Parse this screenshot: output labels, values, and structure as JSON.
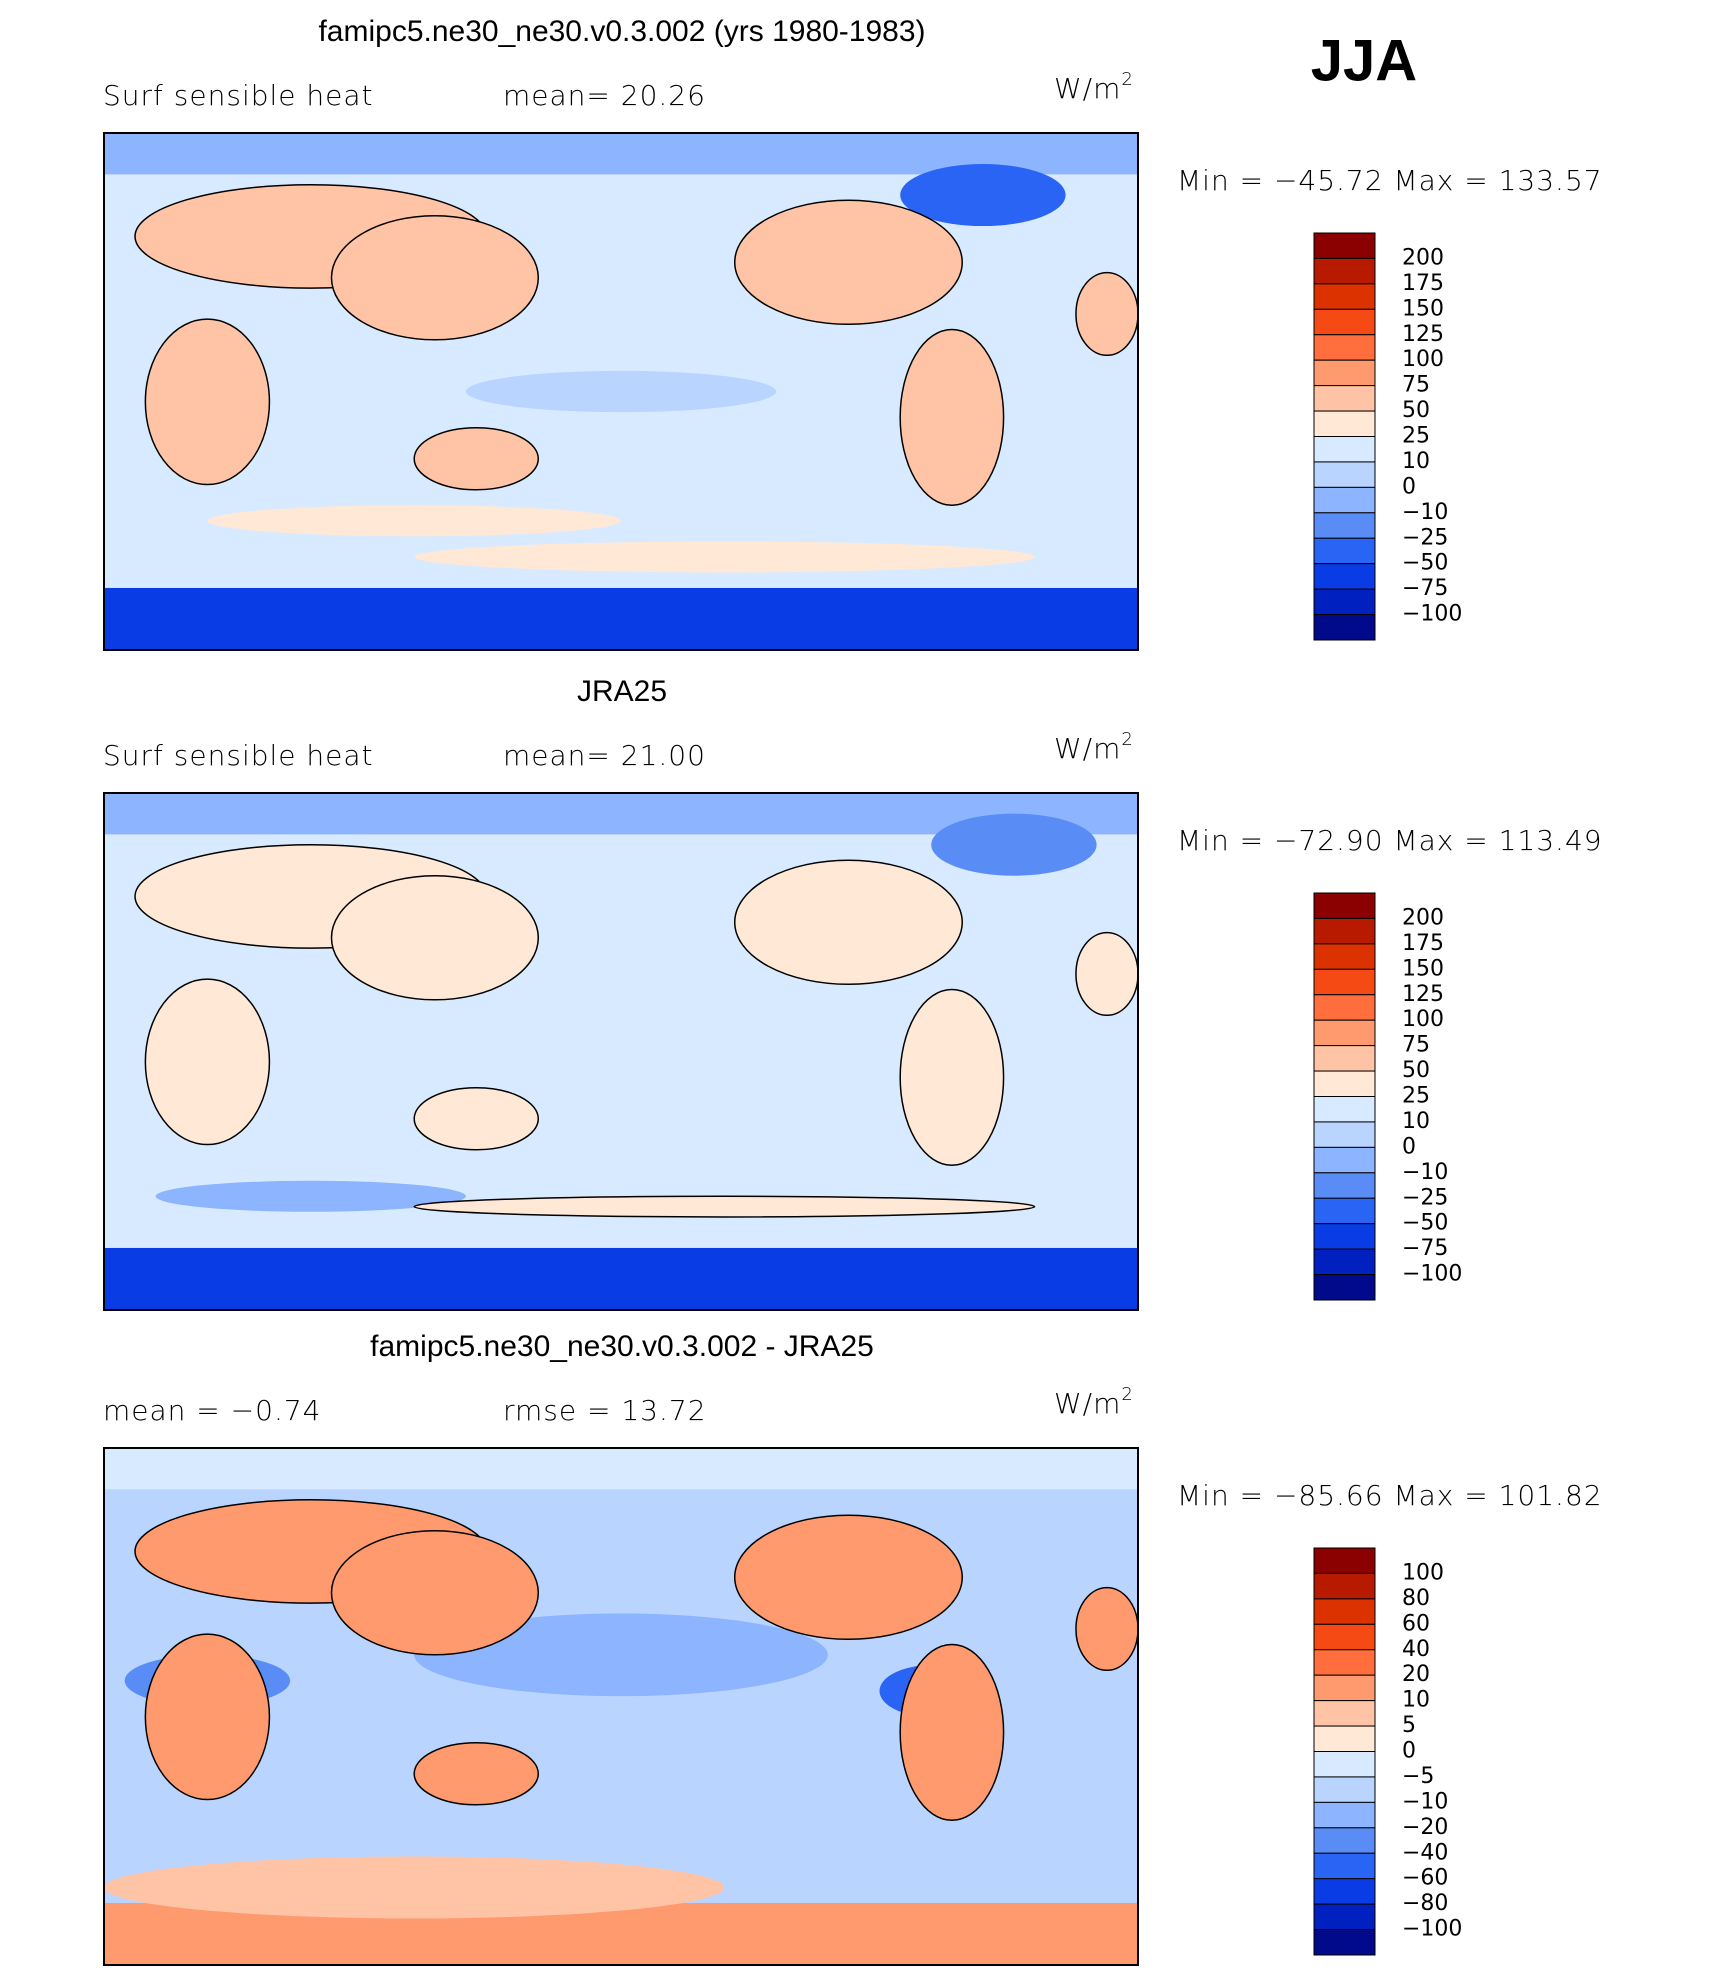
{
  "season": "JJA",
  "units": {
    "base": "W/m",
    "exponent": "2"
  },
  "panels": [
    {
      "title": "famipc5.ne30_ne30.v0.3.002 (yrs 1980-1983)",
      "left_label": "Surf  sensible  heat",
      "right_label": "mean=   20.26",
      "range_text": "Min  =  −45.72  Max  =  133.57",
      "colorbar_labels": [
        "200",
        "175",
        "150",
        "125",
        "100",
        "75",
        "50",
        "25",
        "10",
        "0",
        "−10",
        "−25",
        "−50",
        "−75",
        "−100"
      ]
    },
    {
      "title": "JRA25",
      "left_label": "Surf  sensible  heat",
      "right_label": "mean=   21.00",
      "range_text": "Min  =  −72.90  Max  =  113.49",
      "colorbar_labels": [
        "200",
        "175",
        "150",
        "125",
        "100",
        "75",
        "50",
        "25",
        "10",
        "0",
        "−10",
        "−25",
        "−50",
        "−75",
        "−100"
      ]
    },
    {
      "title": "famipc5.ne30_ne30.v0.3.002 - JRA25",
      "left_label": "mean  =    −0.74",
      "right_label": "rmse  =    13.72",
      "range_text": "Min  =  −85.66  Max  =  101.82",
      "colorbar_labels": [
        "100",
        "80",
        "60",
        "40",
        "20",
        "10",
        "5",
        "0",
        "−5",
        "−10",
        "−20",
        "−40",
        "−60",
        "−80",
        "−100"
      ]
    }
  ],
  "colorbar_colors": [
    "#8b0000",
    "#b81a00",
    "#dc3200",
    "#f54a14",
    "#ff6e3c",
    "#ff9a6e",
    "#ffc4a6",
    "#ffe8d6",
    "#d8eaff",
    "#b8d4ff",
    "#8cb4ff",
    "#5a8cf5",
    "#2a64f5",
    "#0a3ce6",
    "#0020c0",
    "#000a8a"
  ]
}
